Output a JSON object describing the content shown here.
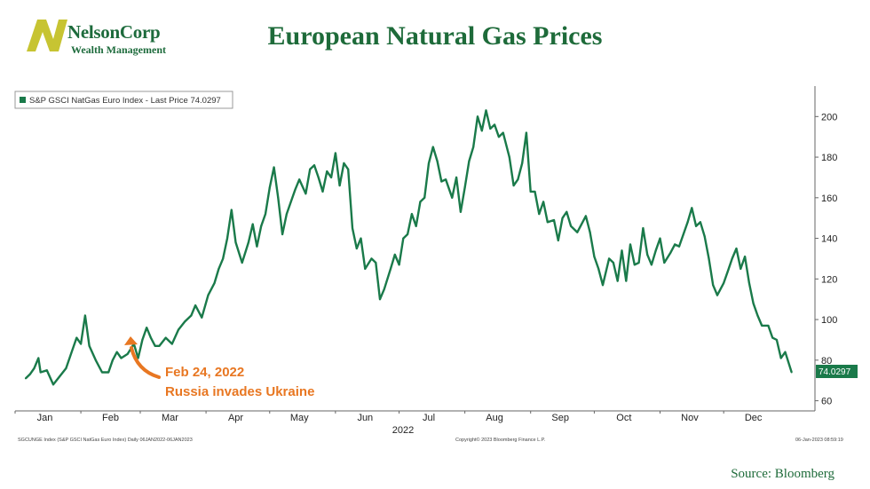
{
  "logo": {
    "name": "NelsonCorp",
    "sub": "Wealth Management"
  },
  "page_title": "European Natural Gas Prices",
  "source": "Source:  Bloomberg",
  "legend": {
    "label": "S&P GSCI NatGas Euro Index - Last Price 74.0297"
  },
  "annotation": {
    "line1": "Feb 24, 2022",
    "line2": "Russia invades Ukraine",
    "color": "#e87722"
  },
  "footer": {
    "left": "SGCUNGE Index (S&P GSCI NatGas Euro Index)  Daily 06JAN2022-06JAN2023",
    "center": "Copyright© 2023 Bloomberg Finance L.P.",
    "right": "06-Jan-2023 08:59:19"
  },
  "colors": {
    "line": "#1a7a4a",
    "title": "#1e6b3a",
    "annotation": "#e87722"
  },
  "chart_data": {
    "type": "line",
    "title": "European Natural Gas Prices",
    "xlabel": "2022",
    "ylabel": "",
    "ylim": [
      55,
      215
    ],
    "yticks": [
      60,
      80,
      100,
      120,
      140,
      160,
      180,
      200
    ],
    "grid": false,
    "legend_position": "top-left",
    "last_price_label": "74.0297",
    "x_categories": [
      "Jan",
      "Feb",
      "Mar",
      "Apr",
      "May",
      "Jun",
      "Jul",
      "Aug",
      "Sep",
      "Oct",
      "Nov",
      "Dec"
    ],
    "series": [
      {
        "name": "S&P GSCI NatGas Euro Index - Last Price 74.0297",
        "points": [
          [
            "2022-01-06",
            71
          ],
          [
            "2022-01-08",
            73
          ],
          [
            "2022-01-10",
            76
          ],
          [
            "2022-01-12",
            81
          ],
          [
            "2022-01-13",
            74
          ],
          [
            "2022-01-16",
            75
          ],
          [
            "2022-01-19",
            68
          ],
          [
            "2022-01-22",
            72
          ],
          [
            "2022-01-25",
            76
          ],
          [
            "2022-01-28",
            85
          ],
          [
            "2022-01-30",
            91
          ],
          [
            "2022-02-01",
            88
          ],
          [
            "2022-02-03",
            102
          ],
          [
            "2022-02-05",
            87
          ],
          [
            "2022-02-08",
            80
          ],
          [
            "2022-02-11",
            74
          ],
          [
            "2022-02-14",
            74
          ],
          [
            "2022-02-16",
            80
          ],
          [
            "2022-02-18",
            84
          ],
          [
            "2022-02-20",
            81
          ],
          [
            "2022-02-23",
            83
          ],
          [
            "2022-02-26",
            88
          ],
          [
            "2022-02-28",
            81
          ],
          [
            "2022-03-02",
            90
          ],
          [
            "2022-03-04",
            96
          ],
          [
            "2022-03-06",
            91
          ],
          [
            "2022-03-08",
            87
          ],
          [
            "2022-03-10",
            87
          ],
          [
            "2022-03-13",
            91
          ],
          [
            "2022-03-16",
            88
          ],
          [
            "2022-03-19",
            95
          ],
          [
            "2022-03-22",
            99
          ],
          [
            "2022-03-25",
            102
          ],
          [
            "2022-03-27",
            107
          ],
          [
            "2022-03-30",
            101
          ],
          [
            "2022-04-02",
            112
          ],
          [
            "2022-04-05",
            118
          ],
          [
            "2022-04-07",
            125
          ],
          [
            "2022-04-09",
            130
          ],
          [
            "2022-04-11",
            140
          ],
          [
            "2022-04-13",
            154
          ],
          [
            "2022-04-15",
            138
          ],
          [
            "2022-04-18",
            128
          ],
          [
            "2022-04-21",
            138
          ],
          [
            "2022-04-23",
            147
          ],
          [
            "2022-04-25",
            136
          ],
          [
            "2022-04-27",
            146
          ],
          [
            "2022-04-29",
            152
          ],
          [
            "2022-05-01",
            165
          ],
          [
            "2022-05-03",
            175
          ],
          [
            "2022-05-05",
            160
          ],
          [
            "2022-05-07",
            142
          ],
          [
            "2022-05-09",
            152
          ],
          [
            "2022-05-11",
            158
          ],
          [
            "2022-05-13",
            164
          ],
          [
            "2022-05-15",
            169
          ],
          [
            "2022-05-18",
            162
          ],
          [
            "2022-05-20",
            174
          ],
          [
            "2022-05-22",
            176
          ],
          [
            "2022-05-24",
            170
          ],
          [
            "2022-05-26",
            163
          ],
          [
            "2022-05-28",
            173
          ],
          [
            "2022-05-30",
            170
          ],
          [
            "2022-06-01",
            182
          ],
          [
            "2022-06-03",
            166
          ],
          [
            "2022-06-05",
            177
          ],
          [
            "2022-06-07",
            174
          ],
          [
            "2022-06-09",
            145
          ],
          [
            "2022-06-11",
            135
          ],
          [
            "2022-06-13",
            140
          ],
          [
            "2022-06-15",
            125
          ],
          [
            "2022-06-18",
            130
          ],
          [
            "2022-06-20",
            128
          ],
          [
            "2022-06-22",
            110
          ],
          [
            "2022-06-24",
            115
          ],
          [
            "2022-06-27",
            125
          ],
          [
            "2022-06-29",
            132
          ],
          [
            "2022-07-01",
            127
          ],
          [
            "2022-07-03",
            140
          ],
          [
            "2022-07-05",
            142
          ],
          [
            "2022-07-07",
            152
          ],
          [
            "2022-07-09",
            146
          ],
          [
            "2022-07-11",
            158
          ],
          [
            "2022-07-13",
            160
          ],
          [
            "2022-07-15",
            177
          ],
          [
            "2022-07-17",
            185
          ],
          [
            "2022-07-19",
            178
          ],
          [
            "2022-07-21",
            168
          ],
          [
            "2022-07-23",
            169
          ],
          [
            "2022-07-26",
            160
          ],
          [
            "2022-07-28",
            170
          ],
          [
            "2022-07-30",
            153
          ],
          [
            "2022-08-01",
            165
          ],
          [
            "2022-08-03",
            178
          ],
          [
            "2022-08-05",
            185
          ],
          [
            "2022-08-07",
            200
          ],
          [
            "2022-08-09",
            193
          ],
          [
            "2022-08-11",
            203
          ],
          [
            "2022-08-13",
            194
          ],
          [
            "2022-08-15",
            196
          ],
          [
            "2022-08-17",
            190
          ],
          [
            "2022-08-19",
            192
          ],
          [
            "2022-08-22",
            180
          ],
          [
            "2022-08-24",
            166
          ],
          [
            "2022-08-26",
            169
          ],
          [
            "2022-08-28",
            177
          ],
          [
            "2022-08-30",
            192
          ],
          [
            "2022-09-01",
            163
          ],
          [
            "2022-09-03",
            163
          ],
          [
            "2022-09-05",
            152
          ],
          [
            "2022-09-07",
            158
          ],
          [
            "2022-09-09",
            148
          ],
          [
            "2022-09-12",
            149
          ],
          [
            "2022-09-14",
            139
          ],
          [
            "2022-09-16",
            150
          ],
          [
            "2022-09-18",
            153
          ],
          [
            "2022-09-20",
            146
          ],
          [
            "2022-09-23",
            143
          ],
          [
            "2022-09-25",
            147
          ],
          [
            "2022-09-27",
            151
          ],
          [
            "2022-09-29",
            143
          ],
          [
            "2022-10-01",
            131
          ],
          [
            "2022-10-03",
            125
          ],
          [
            "2022-10-05",
            117
          ],
          [
            "2022-10-08",
            130
          ],
          [
            "2022-10-10",
            128
          ],
          [
            "2022-10-12",
            119
          ],
          [
            "2022-10-14",
            134
          ],
          [
            "2022-10-16",
            119
          ],
          [
            "2022-10-18",
            137
          ],
          [
            "2022-10-20",
            127
          ],
          [
            "2022-10-22",
            128
          ],
          [
            "2022-10-24",
            145
          ],
          [
            "2022-10-26",
            132
          ],
          [
            "2022-10-28",
            127
          ],
          [
            "2022-10-30",
            134
          ],
          [
            "2022-11-01",
            140
          ],
          [
            "2022-11-03",
            128
          ],
          [
            "2022-11-06",
            133
          ],
          [
            "2022-11-08",
            137
          ],
          [
            "2022-11-10",
            136
          ],
          [
            "2022-11-12",
            142
          ],
          [
            "2022-11-14",
            148
          ],
          [
            "2022-11-16",
            155
          ],
          [
            "2022-11-18",
            146
          ],
          [
            "2022-11-20",
            148
          ],
          [
            "2022-11-22",
            141
          ],
          [
            "2022-11-24",
            130
          ],
          [
            "2022-11-26",
            117
          ],
          [
            "2022-11-28",
            112
          ],
          [
            "2022-12-01",
            118
          ],
          [
            "2022-12-03",
            124
          ],
          [
            "2022-12-05",
            130
          ],
          [
            "2022-12-07",
            135
          ],
          [
            "2022-12-09",
            125
          ],
          [
            "2022-12-11",
            131
          ],
          [
            "2022-12-13",
            118
          ],
          [
            "2022-12-15",
            108
          ],
          [
            "2022-12-17",
            102
          ],
          [
            "2022-12-19",
            97
          ],
          [
            "2022-12-22",
            97
          ],
          [
            "2022-12-24",
            91
          ],
          [
            "2022-12-26",
            90
          ],
          [
            "2022-12-28",
            81
          ],
          [
            "2022-12-30",
            84
          ],
          [
            "2023-01-02",
            74
          ]
        ]
      }
    ]
  }
}
